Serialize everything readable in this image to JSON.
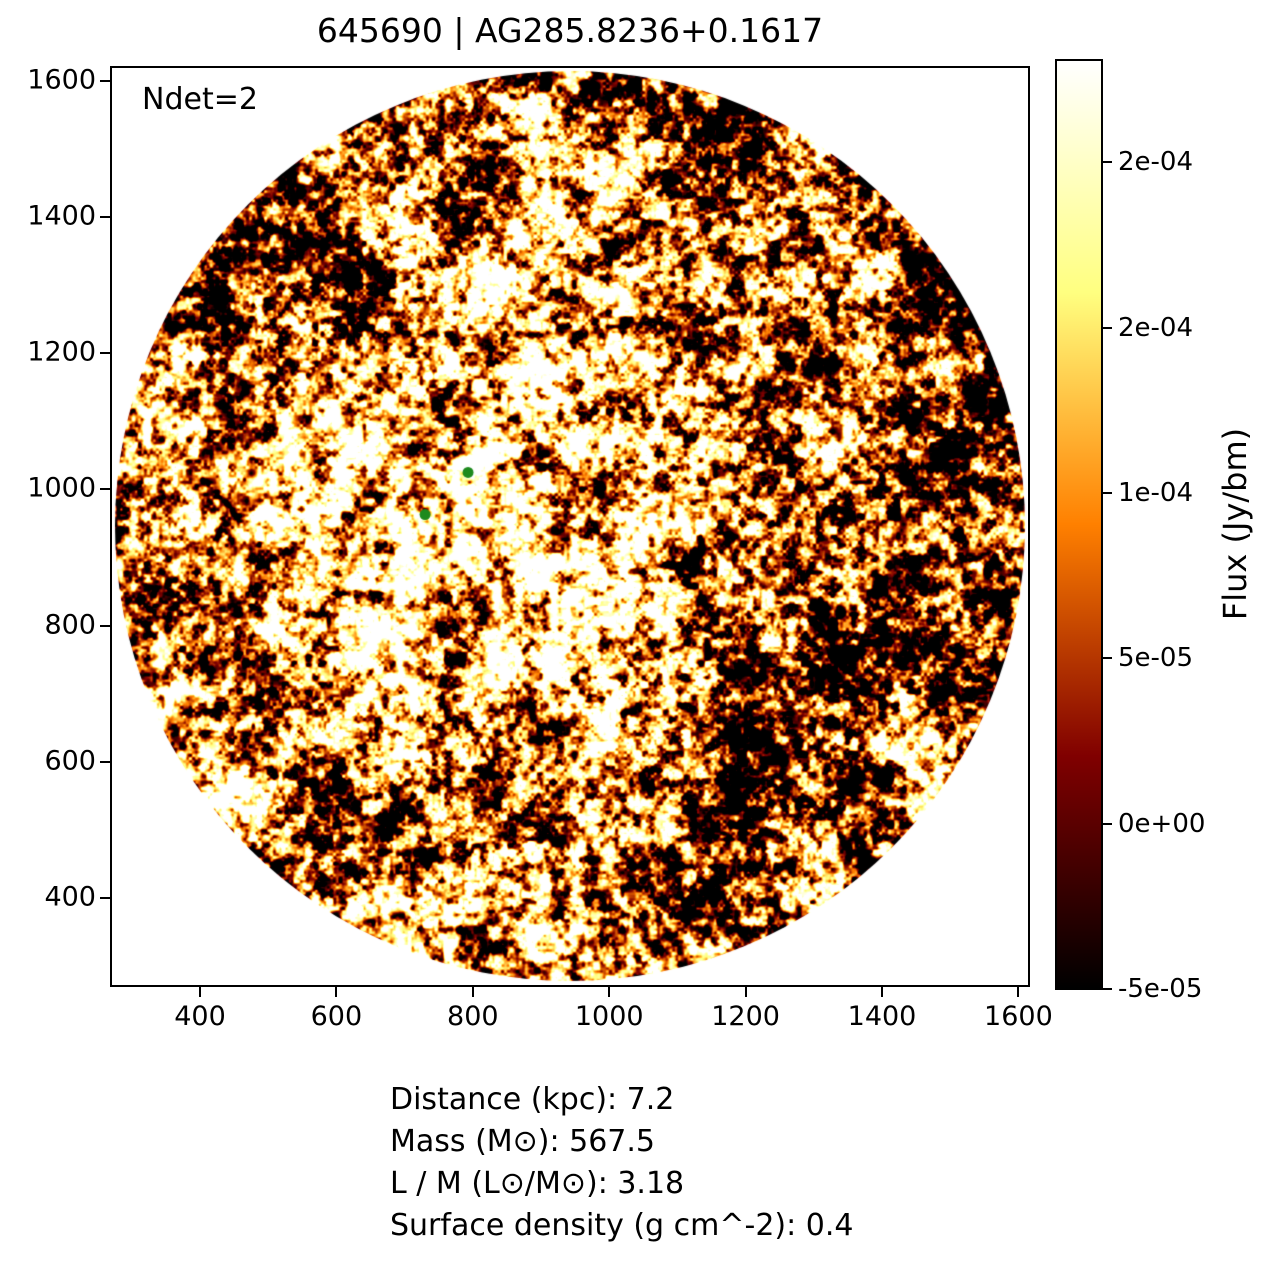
{
  "figure": {
    "title": "645690 | AG285.8236+0.1617",
    "annotation": "Ndet=2"
  },
  "info_lines": [
    "Distance (kpc): 7.2",
    "Mass (M⊙): 567.5",
    "L / M (L⊙/M⊙): 3.18",
    "Surface density (g cm^-2): 0.4"
  ],
  "chart_data": {
    "type": "heatmap",
    "title": "645690 | AG285.8236+0.1617",
    "annotation": "Ndet=2",
    "xlabel": "",
    "ylabel": "",
    "xlim": [
      268,
      1617
    ],
    "ylim": [
      269,
      1622
    ],
    "x_tick_values": [
      400,
      600,
      800,
      1000,
      1200,
      1400,
      1600
    ],
    "x_tick_labels": [
      "400",
      "600",
      "800",
      "1000",
      "1200",
      "1400",
      "1600"
    ],
    "y_tick_values": [
      400,
      600,
      800,
      1000,
      1200,
      1400,
      1600
    ],
    "y_tick_labels": [
      "400",
      "600",
      "800",
      "1000",
      "1200",
      "1400",
      "1600"
    ],
    "grid": false,
    "colormap": "afmhot",
    "image_description": "circular masked flux map of granular hot-colormap noise, brighter diffuse region left of centre with one compact white peak",
    "mask_shape": "circle",
    "mask_center_data": [
      943,
      945
    ],
    "mask_radius_data": 668,
    "colorbar": {
      "label": "Flux (Jy/bm)",
      "tick_values": [
        0.0002,
        0.00015,
        0.0001,
        5e-05,
        0.0,
        -5e-05
      ],
      "tick_labels": [
        "2e-04",
        "2e-04",
        "1e-04",
        "5e-05",
        "0e+00",
        "-5e-05"
      ],
      "vmin": -5e-05,
      "vmax": 0.000231,
      "position": "right"
    },
    "markers": [
      {
        "x": 793,
        "y": 1025,
        "shape": "circle",
        "color": "#1d8a1d"
      },
      {
        "x": 730,
        "y": 963,
        "shape": "circle",
        "color": "#1d8a1d"
      }
    ],
    "stats": {
      "distance_kpc": 7.2,
      "mass_msun": 567.5,
      "l_over_m_lsun_per_msun": 3.18,
      "surface_density_g_cm2": 0.4
    }
  },
  "colors": {
    "axes": "#000000",
    "background": "#ffffff",
    "marker_green": "#1d8a1d"
  }
}
